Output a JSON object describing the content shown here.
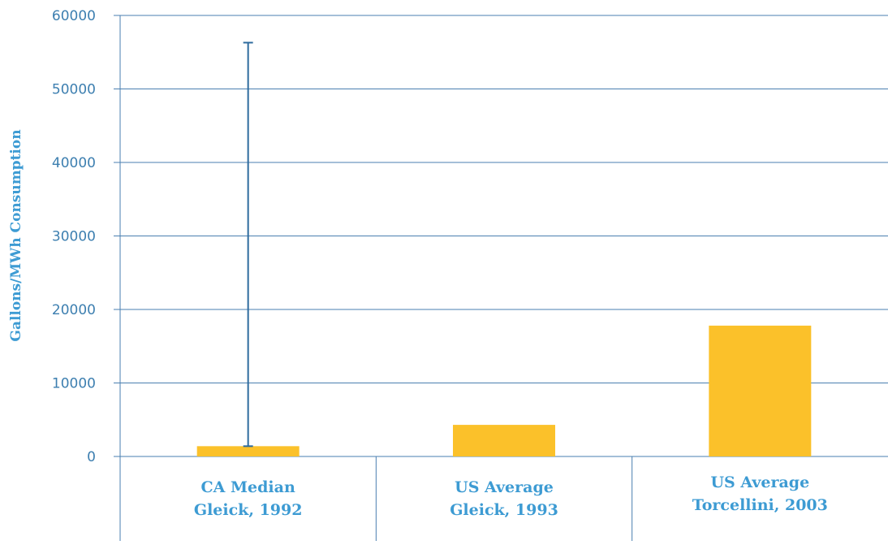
{
  "chart_data": {
    "type": "bar",
    "title": "",
    "ylabel": "Gallons/MWh Consumption",
    "xlabel": "",
    "ylim": [
      0,
      60000
    ],
    "yticks": [
      0,
      10000,
      20000,
      30000,
      40000,
      50000,
      60000
    ],
    "grid": true,
    "categories": [
      [
        "CA Median",
        "Gleick, 1992"
      ],
      [
        "US Average",
        "Gleick, 1993"
      ],
      [
        "US Average",
        "Torcellini, 2003"
      ]
    ],
    "values": [
      1400,
      4300,
      17800
    ],
    "error_bars": [
      {
        "category_index": 0,
        "low": 1400,
        "high": 56300
      }
    ],
    "colors": {
      "bar": "#fbc12a",
      "grid": "#4a7fb0",
      "axis_text": "#3d7fb0",
      "label_text": "#3d9bd3",
      "error_bar": "#2e6b9e"
    }
  }
}
